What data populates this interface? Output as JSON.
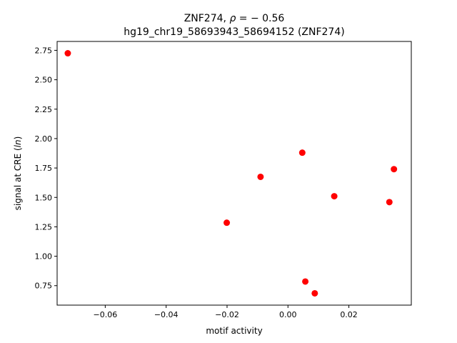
{
  "chart_data": {
    "type": "scatter",
    "title_line1": "ZNF274, ",
    "title_rho": "ρ",
    "title_eq": " = − 0.56",
    "title_line2": "hg19_chr19_58693943_58694152 (ZNF274)",
    "xlabel": "motif activity",
    "ylabel_prefix": "signal at CRE (",
    "ylabel_italic": "ln",
    "ylabel_suffix": ")",
    "xlim": [
      -0.0758,
      0.0405
    ],
    "ylim": [
      0.5845,
      2.8255
    ],
    "xticks": [
      {
        "value": -0.06,
        "label": "−0.06"
      },
      {
        "value": -0.04,
        "label": "−0.04"
      },
      {
        "value": -0.02,
        "label": "−0.02"
      },
      {
        "value": 0.0,
        "label": "0.00"
      },
      {
        "value": 0.02,
        "label": "0.02"
      }
    ],
    "yticks": [
      {
        "value": 0.75,
        "label": "0.75"
      },
      {
        "value": 1.0,
        "label": "1.00"
      },
      {
        "value": 1.25,
        "label": "1.25"
      },
      {
        "value": 1.5,
        "label": "1.50"
      },
      {
        "value": 1.75,
        "label": "1.75"
      },
      {
        "value": 2.0,
        "label": "2.00"
      },
      {
        "value": 2.25,
        "label": "2.25"
      },
      {
        "value": 2.5,
        "label": "2.50"
      },
      {
        "value": 2.75,
        "label": "2.75"
      }
    ],
    "grid": false,
    "marker_color": "#ff0000",
    "points": [
      {
        "x": -0.0723,
        "y": 2.725
      },
      {
        "x": -0.0201,
        "y": 1.285
      },
      {
        "x": -0.009,
        "y": 1.675
      },
      {
        "x": 0.0047,
        "y": 1.88
      },
      {
        "x": 0.0057,
        "y": 0.785
      },
      {
        "x": 0.0088,
        "y": 0.685
      },
      {
        "x": 0.0152,
        "y": 1.51
      },
      {
        "x": 0.0333,
        "y": 1.46
      },
      {
        "x": 0.0348,
        "y": 1.74
      }
    ]
  }
}
